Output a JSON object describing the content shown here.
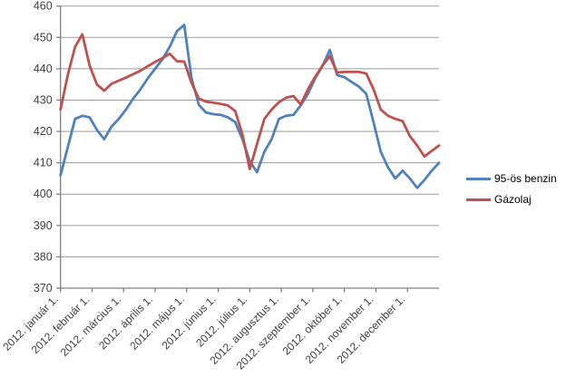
{
  "chart_data": {
    "type": "line",
    "x_axis": {
      "tick_labels": [
        "2012. január 1.",
        "2012. február 1.",
        "2012. március 1.",
        "2012. április 1.",
        "2012. május 1.",
        "2012. június 1.",
        "2012. július 1.",
        "2012. augusztus 1.",
        "2012. szeptember 1.",
        "2012. október 1.",
        "2012. november 1.",
        "2012. december 1."
      ],
      "unit": "weekly points, monthly ticks"
    },
    "y_axis": {
      "ticks": [
        370,
        380,
        390,
        400,
        410,
        420,
        430,
        440,
        450,
        460
      ],
      "range": [
        370,
        460
      ]
    },
    "grid": "horizontal",
    "legend_position": "right",
    "series": [
      {
        "name": "95-ös benzin",
        "color": "#4F81BD",
        "values": [
          406,
          415,
          424,
          425,
          424.5,
          420.5,
          417.5,
          421.5,
          424,
          427,
          430.5,
          433.5,
          437,
          440,
          443,
          447,
          452,
          454,
          437,
          428.5,
          426,
          425.5,
          425.3,
          424.5,
          423,
          417.5,
          410.5,
          407,
          413.5,
          417.5,
          424,
          425,
          425.3,
          428.3,
          432,
          437,
          441,
          446,
          438,
          437.3,
          435.8,
          434.3,
          432,
          423,
          413.5,
          408.5,
          405,
          407.5,
          405,
          402,
          404.5,
          407.5,
          410
        ]
      },
      {
        "name": "Gázolaj",
        "color": "#C0504D",
        "values": [
          427,
          438,
          447,
          451,
          441,
          435,
          433,
          435.2,
          436.2,
          437.2,
          438.3,
          439.4,
          440.8,
          442.2,
          443.4,
          444.8,
          442.4,
          442.3,
          435.5,
          430.5,
          429.5,
          429.2,
          428.8,
          428.3,
          426.5,
          419,
          408,
          416,
          424,
          427,
          429.3,
          430.8,
          431.3,
          428.6,
          433.5,
          437.5,
          441,
          444,
          438.8,
          439,
          439,
          439,
          438.5,
          433.5,
          427,
          425,
          424,
          423.3,
          418.5,
          415.5,
          412,
          413.8,
          415.5
        ]
      }
    ],
    "colors": {
      "gridline": "#9b9b9b",
      "axis": "#808080",
      "axis_text": "#404040",
      "background": "#ffffff"
    }
  }
}
